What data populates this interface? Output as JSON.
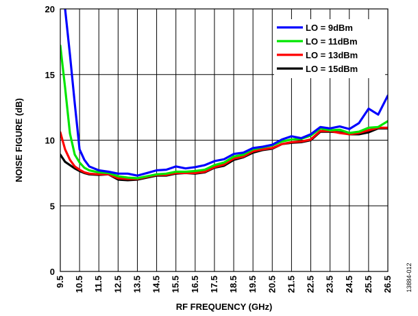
{
  "chart_data": {
    "type": "line",
    "title": "",
    "xlabel": "RF FREQUENCY (GHz)",
    "ylabel": "NOISE FIGURE (dB)",
    "xlim": [
      9.5,
      26.5
    ],
    "ylim": [
      0,
      20
    ],
    "x_ticks": [
      "9.5",
      "10.5",
      "11.5",
      "12.5",
      "13.5",
      "14.5",
      "15.5",
      "16.5",
      "17.5",
      "18.5",
      "19.5",
      "20.5",
      "21.5",
      "22.5",
      "23.5",
      "24.5",
      "25.5",
      "26.5"
    ],
    "y_ticks": [
      "0",
      "5",
      "10",
      "15",
      "20"
    ],
    "grid": true,
    "legend_position": "top-right",
    "figure_id": "13884-012",
    "series": [
      {
        "name": "LO = 9dBm",
        "color": "#0000ff",
        "points": [
          [
            9.75,
            20
          ],
          [
            10.0,
            16.5
          ],
          [
            10.25,
            12.8
          ],
          [
            10.5,
            9.3
          ],
          [
            10.75,
            8.5
          ],
          [
            11.0,
            8.0
          ],
          [
            11.5,
            7.7
          ],
          [
            12.0,
            7.6
          ],
          [
            12.5,
            7.45
          ],
          [
            13.0,
            7.45
          ],
          [
            13.5,
            7.3
          ],
          [
            14.0,
            7.5
          ],
          [
            14.5,
            7.7
          ],
          [
            15.0,
            7.75
          ],
          [
            15.5,
            8.0
          ],
          [
            16.0,
            7.85
          ],
          [
            16.5,
            7.95
          ],
          [
            17.0,
            8.1
          ],
          [
            17.5,
            8.4
          ],
          [
            18.0,
            8.55
          ],
          [
            18.5,
            8.95
          ],
          [
            19.0,
            9.05
          ],
          [
            19.5,
            9.4
          ],
          [
            20.0,
            9.5
          ],
          [
            20.5,
            9.65
          ],
          [
            21.0,
            10.05
          ],
          [
            21.5,
            10.3
          ],
          [
            22.0,
            10.15
          ],
          [
            22.5,
            10.45
          ],
          [
            23.0,
            11.0
          ],
          [
            23.5,
            10.9
          ],
          [
            24.0,
            11.05
          ],
          [
            24.5,
            10.85
          ],
          [
            25.0,
            11.3
          ],
          [
            25.5,
            12.4
          ],
          [
            26.0,
            11.95
          ],
          [
            26.5,
            13.4
          ]
        ]
      },
      {
        "name": "LO = 11dBm",
        "color": "#00e600",
        "points": [
          [
            9.5,
            17.2
          ],
          [
            9.75,
            14.0
          ],
          [
            10.0,
            10.5
          ],
          [
            10.25,
            8.9
          ],
          [
            10.5,
            8.3
          ],
          [
            10.75,
            7.9
          ],
          [
            11.0,
            7.7
          ],
          [
            11.5,
            7.55
          ],
          [
            12.0,
            7.5
          ],
          [
            12.5,
            7.25
          ],
          [
            13.0,
            7.15
          ],
          [
            13.5,
            7.1
          ],
          [
            14.0,
            7.25
          ],
          [
            14.5,
            7.4
          ],
          [
            15.0,
            7.45
          ],
          [
            15.5,
            7.6
          ],
          [
            16.0,
            7.6
          ],
          [
            16.5,
            7.65
          ],
          [
            17.0,
            7.75
          ],
          [
            17.5,
            8.1
          ],
          [
            18.0,
            8.3
          ],
          [
            18.5,
            8.75
          ],
          [
            19.0,
            8.9
          ],
          [
            19.5,
            9.3
          ],
          [
            20.0,
            9.45
          ],
          [
            20.5,
            9.6
          ],
          [
            21.0,
            9.9
          ],
          [
            21.5,
            10.05
          ],
          [
            22.0,
            10.1
          ],
          [
            22.5,
            10.35
          ],
          [
            23.0,
            10.9
          ],
          [
            23.5,
            10.75
          ],
          [
            24.0,
            10.8
          ],
          [
            24.5,
            10.55
          ],
          [
            25.0,
            10.65
          ],
          [
            25.5,
            10.95
          ],
          [
            26.0,
            11.0
          ],
          [
            26.5,
            11.45
          ]
        ]
      },
      {
        "name": "LO = 13dBm",
        "color": "#ff0000",
        "points": [
          [
            9.5,
            10.6
          ],
          [
            9.75,
            9.3
          ],
          [
            10.0,
            8.5
          ],
          [
            10.25,
            8.0
          ],
          [
            10.5,
            7.75
          ],
          [
            10.75,
            7.55
          ],
          [
            11.0,
            7.45
          ],
          [
            11.5,
            7.4
          ],
          [
            12.0,
            7.4
          ],
          [
            12.5,
            7.1
          ],
          [
            13.0,
            7.05
          ],
          [
            13.5,
            7.05
          ],
          [
            14.0,
            7.2
          ],
          [
            14.5,
            7.35
          ],
          [
            15.0,
            7.35
          ],
          [
            15.5,
            7.5
          ],
          [
            16.0,
            7.5
          ],
          [
            16.5,
            7.5
          ],
          [
            17.0,
            7.6
          ],
          [
            17.5,
            7.95
          ],
          [
            18.0,
            8.15
          ],
          [
            18.5,
            8.6
          ],
          [
            19.0,
            8.75
          ],
          [
            19.5,
            9.15
          ],
          [
            20.0,
            9.3
          ],
          [
            20.5,
            9.4
          ],
          [
            21.0,
            9.7
          ],
          [
            21.5,
            9.85
          ],
          [
            22.0,
            9.9
          ],
          [
            22.5,
            10.05
          ],
          [
            23.0,
            10.7
          ],
          [
            23.5,
            10.7
          ],
          [
            24.0,
            10.55
          ],
          [
            24.5,
            10.45
          ],
          [
            25.0,
            10.55
          ],
          [
            25.5,
            10.75
          ],
          [
            26.0,
            10.95
          ],
          [
            26.5,
            10.95
          ]
        ]
      },
      {
        "name": "LO = 15dBm",
        "color": "#000000",
        "points": [
          [
            9.5,
            8.9
          ],
          [
            9.75,
            8.35
          ],
          [
            10.0,
            8.1
          ],
          [
            10.25,
            7.85
          ],
          [
            10.5,
            7.65
          ],
          [
            10.75,
            7.5
          ],
          [
            11.0,
            7.4
          ],
          [
            11.5,
            7.35
          ],
          [
            12.0,
            7.4
          ],
          [
            12.5,
            7.0
          ],
          [
            13.0,
            6.95
          ],
          [
            13.5,
            7.0
          ],
          [
            14.0,
            7.15
          ],
          [
            14.5,
            7.3
          ],
          [
            15.0,
            7.3
          ],
          [
            15.5,
            7.45
          ],
          [
            16.0,
            7.5
          ],
          [
            16.5,
            7.45
          ],
          [
            17.0,
            7.55
          ],
          [
            17.5,
            7.9
          ],
          [
            18.0,
            8.05
          ],
          [
            18.5,
            8.5
          ],
          [
            19.0,
            8.7
          ],
          [
            19.5,
            9.05
          ],
          [
            20.0,
            9.25
          ],
          [
            20.5,
            9.35
          ],
          [
            21.0,
            9.7
          ],
          [
            21.5,
            9.8
          ],
          [
            22.0,
            9.85
          ],
          [
            22.5,
            10.0
          ],
          [
            23.0,
            10.65
          ],
          [
            23.5,
            10.65
          ],
          [
            24.0,
            10.6
          ],
          [
            24.5,
            10.45
          ],
          [
            25.0,
            10.45
          ],
          [
            25.5,
            10.6
          ],
          [
            26.0,
            10.9
          ],
          [
            26.5,
            10.9
          ]
        ]
      }
    ]
  }
}
